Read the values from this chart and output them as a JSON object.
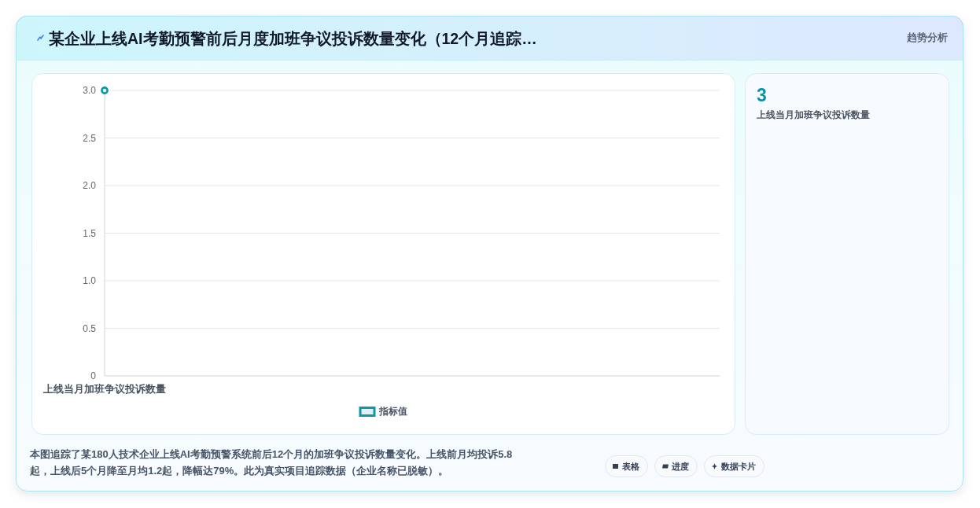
{
  "chart_data": {
    "type": "line",
    "title": "某企业上线AI考勤预警前后月度加班争议投诉数量变化（12个月追踪…",
    "subtitle": "趋势分析",
    "categories": [
      "上线当月加班争议投诉数量"
    ],
    "series": [
      {
        "name": "指标值",
        "color": "#1195a8",
        "values": [
          3
        ]
      }
    ],
    "ylim": [
      0,
      3
    ],
    "yticks": [
      0,
      0.5,
      {
        "value": 1,
        "label": "1.0"
      },
      1.5,
      {
        "value": 2,
        "label": "2.0"
      },
      2.5,
      {
        "value": 3,
        "label": "3.0"
      }
    ],
    "grid": "y",
    "legend": "bottom",
    "marker": "circle",
    "annotations": [
      "3",
      "上线当月加班争议投诉数量",
      "本图追踪了某180人技术企业上线AI考勤预警系统前后12个月的加班争议投诉数量变化。上线前月均投诉5.8起，上线后5个月降至月均1.2起，降幅达79%。此为真实项目追踪数据（企业名称已脱敏）。",
      "表格",
      "进度",
      "数据卡片"
    ]
  }
}
